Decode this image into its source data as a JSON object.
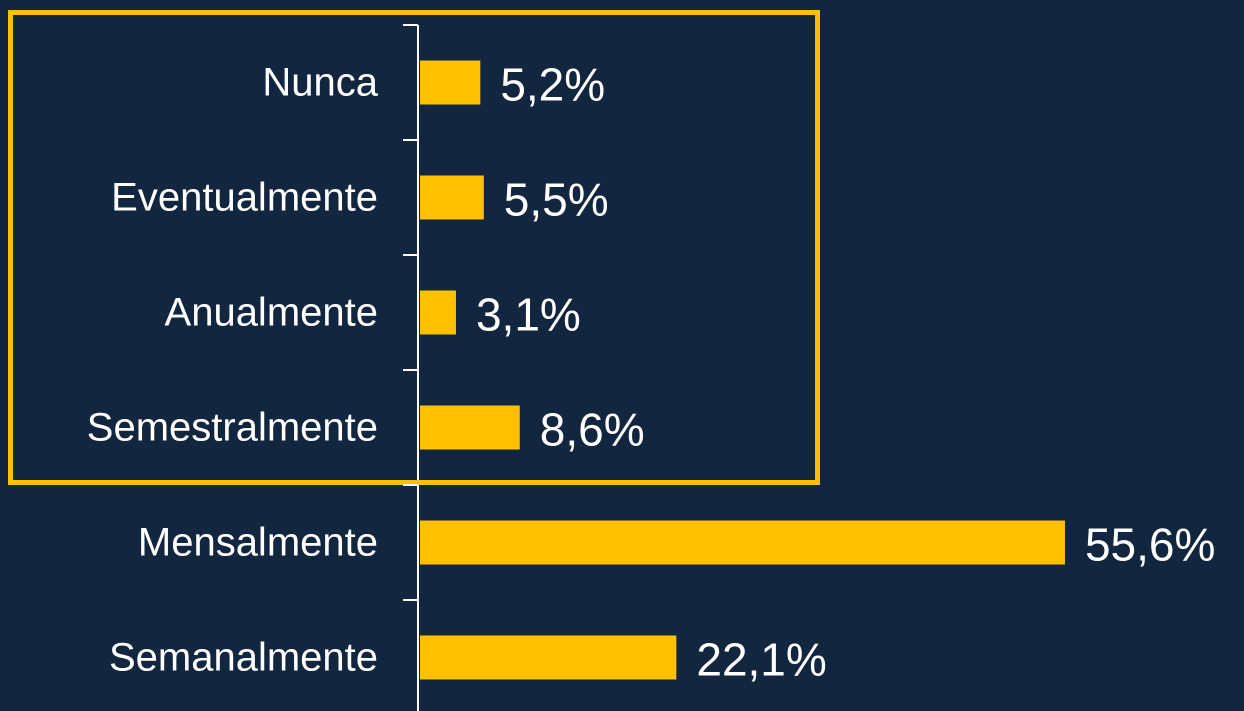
{
  "chart_data": {
    "type": "bar",
    "orientation": "horizontal",
    "categories": [
      "Nunca",
      "Eventualmente",
      "Anualmente",
      "Semestralmente",
      "Mensalmente",
      "Semanalmente"
    ],
    "values": [
      5.2,
      5.5,
      3.1,
      8.6,
      55.6,
      22.1
    ],
    "value_labels": [
      "5,2%",
      "5,5%",
      "3,1%",
      "8,6%",
      "55,6%",
      "22,1%"
    ],
    "color": "#ffc000"
  }
}
